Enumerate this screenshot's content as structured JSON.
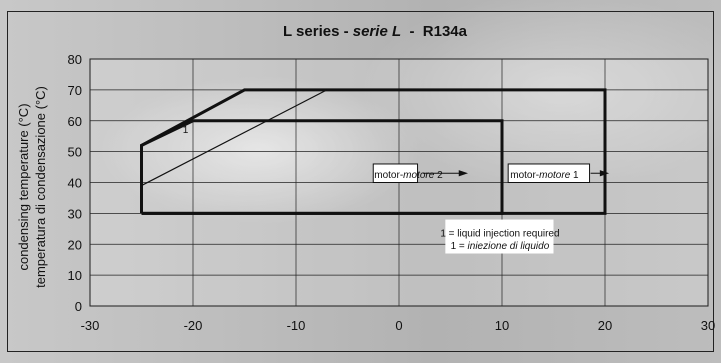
{
  "chart_data": {
    "type": "line",
    "title": {
      "part1": "L series - ",
      "part2": "serie L",
      "part3": "  -  R134a"
    },
    "ylabel_line1": "condensing temperature (°C)",
    "ylabel_line2": "temperatura di condensazione (°C)",
    "xlabel": "",
    "xlim": [
      -30,
      30
    ],
    "ylim": [
      0,
      80
    ],
    "xticks": [
      -30,
      -20,
      -10,
      0,
      10,
      20,
      30
    ],
    "yticks": [
      0,
      10,
      20,
      30,
      40,
      50,
      60,
      70,
      80
    ],
    "grid": true,
    "series": [
      {
        "label": "motor-motore 1",
        "x": [
          -25,
          -25,
          -15,
          20,
          20,
          -25
        ],
        "y": [
          30,
          52,
          70,
          70,
          30,
          30
        ]
      },
      {
        "label": "motor-motore 2",
        "x": [
          -25,
          -25,
          -20,
          10,
          10,
          -25
        ],
        "y": [
          30,
          52,
          60,
          60,
          30,
          30
        ]
      },
      {
        "label": "1",
        "x": [
          -25,
          -7
        ],
        "y": [
          39,
          70
        ]
      }
    ],
    "annotations": {
      "region_marker": "1",
      "motor2": {
        "text1": "motor-",
        "text2": "motore",
        "text3": " 2"
      },
      "motor1": {
        "text1": "motor-",
        "text2": "motore",
        "text3": " 1"
      },
      "note_line1": "1 = liquid injection required",
      "note_line2_prefix": "1 = ",
      "note_line2_italic": "iniezione di liquido"
    }
  }
}
